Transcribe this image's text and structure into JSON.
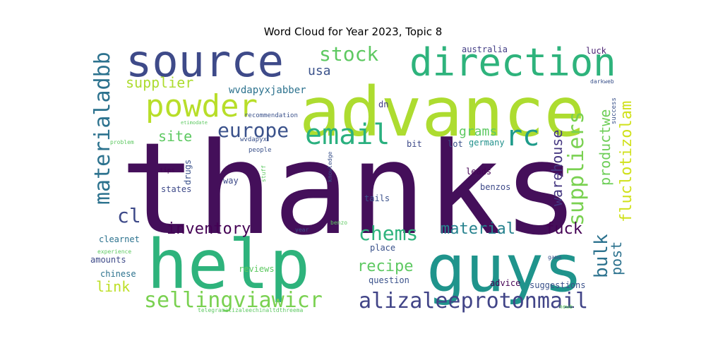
{
  "chart_data": {
    "type": "wordcloud",
    "title": "Word Cloud for Year 2023, Topic 8",
    "xlabel": "",
    "ylabel": "",
    "words": [
      {
        "text": "thanks",
        "weight": 100,
        "color": "#440f5a",
        "rotated": false
      },
      {
        "text": "advance",
        "weight": 52,
        "color": "#addc30",
        "rotated": false
      },
      {
        "text": "help",
        "weight": 48,
        "color": "#2eb37c",
        "rotated": false
      },
      {
        "text": "guys",
        "weight": 44,
        "color": "#1f948c",
        "rotated": false
      },
      {
        "text": "source",
        "weight": 34,
        "color": "#3e4a89",
        "rotated": false
      },
      {
        "text": "direction",
        "weight": 28,
        "color": "#2eb37c",
        "rotated": false
      },
      {
        "text": "powder",
        "weight": 22,
        "color": "#b8de29",
        "rotated": false
      },
      {
        "text": "email",
        "weight": 22,
        "color": "#2ab07f",
        "rotated": false
      },
      {
        "text": "rc",
        "weight": 22,
        "color": "#1e9b8a",
        "rotated": false
      },
      {
        "text": "materialadbb",
        "weight": 14,
        "color": "#2c728e",
        "rotated": true
      },
      {
        "text": "suppliers",
        "weight": 16,
        "color": "#7ad151",
        "rotated": true
      },
      {
        "text": "alizaleeprotonmail",
        "weight": 15,
        "color": "#414487",
        "rotated": false
      },
      {
        "text": "sellingviawicr",
        "weight": 15,
        "color": "#7ad151",
        "rotated": false
      },
      {
        "text": "chems",
        "weight": 14,
        "color": "#2eb37c",
        "rotated": false
      },
      {
        "text": "stock",
        "weight": 13,
        "color": "#5ec962",
        "rotated": false
      },
      {
        "text": "europe",
        "weight": 13,
        "color": "#3b528b",
        "rotated": false
      },
      {
        "text": "cl",
        "weight": 13,
        "color": "#3e4a89",
        "rotated": false
      },
      {
        "text": "bulk",
        "weight": 13,
        "color": "#2c728e",
        "rotated": true
      },
      {
        "text": "inventory",
        "weight": 11,
        "color": "#440154",
        "rotated": false
      },
      {
        "text": "recipe",
        "weight": 11,
        "color": "#5ec962",
        "rotated": false
      },
      {
        "text": "fuck",
        "weight": 10,
        "color": "#440154",
        "rotated": false
      },
      {
        "text": "material",
        "weight": 10,
        "color": "#26828e",
        "rotated": false
      },
      {
        "text": "fluclotizolam",
        "weight": 10,
        "color": "#d0e11c",
        "rotated": true
      },
      {
        "text": "productwe",
        "weight": 9,
        "color": "#6ece58",
        "rotated": true
      },
      {
        "text": "warehouse",
        "weight": 9,
        "color": "#453781",
        "rotated": true
      },
      {
        "text": "supplier",
        "weight": 9,
        "color": "#addc30",
        "rotated": false
      },
      {
        "text": "site",
        "weight": 9,
        "color": "#5ec962",
        "rotated": false
      },
      {
        "text": "link",
        "weight": 9,
        "color": "#bddf26",
        "rotated": false
      },
      {
        "text": "post",
        "weight": 9,
        "color": "#2c728e",
        "rotated": true
      },
      {
        "text": "usa",
        "weight": 8,
        "color": "#3b528b",
        "rotated": false
      },
      {
        "text": "grams",
        "weight": 8,
        "color": "#5ec962",
        "rotated": false
      },
      {
        "text": "wvdapyxjabber",
        "weight": 7,
        "color": "#2c728e",
        "rotated": false
      },
      {
        "text": "australia",
        "weight": 6,
        "color": "#433e85",
        "rotated": false
      },
      {
        "text": "luck",
        "weight": 6,
        "color": "#481f70",
        "rotated": false
      },
      {
        "text": "drugs",
        "weight": 5,
        "color": "#3b528b",
        "rotated": true
      },
      {
        "text": "germany",
        "weight": 5,
        "color": "#21918c",
        "rotated": false
      },
      {
        "text": "lot",
        "weight": 5,
        "color": "#3b528b",
        "rotated": false
      },
      {
        "text": "bit",
        "weight": 5,
        "color": "#3e4a89",
        "rotated": false
      },
      {
        "text": "dn",
        "weight": 5,
        "color": "#433e85",
        "rotated": false
      },
      {
        "text": "leads",
        "weight": 5,
        "color": "#440154",
        "rotated": false
      },
      {
        "text": "benzos",
        "weight": 5,
        "color": "#3e4a89",
        "rotated": false
      },
      {
        "text": "tails",
        "weight": 5,
        "color": "#3b528b",
        "rotated": false
      },
      {
        "text": "states",
        "weight": 5,
        "color": "#3e4a89",
        "rotated": false
      },
      {
        "text": "way",
        "weight": 5,
        "color": "#3e4a89",
        "rotated": false
      },
      {
        "text": "clearnet",
        "weight": 5,
        "color": "#2c728e",
        "rotated": false
      },
      {
        "text": "amounts",
        "weight": 5,
        "color": "#3e4a89",
        "rotated": false
      },
      {
        "text": "chinese",
        "weight": 5,
        "color": "#2c728e",
        "rotated": false
      },
      {
        "text": "reviews",
        "weight": 5,
        "color": "#5ec962",
        "rotated": false
      },
      {
        "text": "question",
        "weight": 5,
        "color": "#3b528b",
        "rotated": false
      },
      {
        "text": "advice",
        "weight": 5,
        "color": "#440154",
        "rotated": false
      },
      {
        "text": "suggestions",
        "weight": 5,
        "color": "#3b528b",
        "rotated": false
      },
      {
        "text": "place",
        "weight": 5,
        "color": "#3b528b",
        "rotated": false
      },
      {
        "text": "recommendation",
        "weight": 4,
        "color": "#3b528b",
        "rotated": false
      },
      {
        "text": "success",
        "weight": 4,
        "color": "#3b528b",
        "rotated": true
      },
      {
        "text": "darkweb",
        "weight": 3,
        "color": "#3b528b",
        "rotated": false
      },
      {
        "text": "wvdapyx",
        "weight": 4,
        "color": "#3b528b",
        "rotated": false
      },
      {
        "text": "people",
        "weight": 4,
        "color": "#3b528b",
        "rotated": false
      },
      {
        "text": "problem",
        "weight": 3,
        "color": "#5ec962",
        "rotated": false
      },
      {
        "text": "tips",
        "weight": 4,
        "color": "#440154",
        "rotated": false
      },
      {
        "text": "stuff",
        "weight": 3,
        "color": "#5ec962",
        "rotated": true
      },
      {
        "text": "knowledge",
        "weight": 3,
        "color": "#3b528b",
        "rotated": true
      },
      {
        "text": "experience",
        "weight": 3,
        "color": "#5ec962",
        "rotated": false
      },
      {
        "text": "year",
        "weight": 3,
        "color": "#3b528b",
        "rotated": false
      },
      {
        "text": "benzo",
        "weight": 3,
        "color": "#5ec962",
        "rotated": false
      },
      {
        "text": "game",
        "weight": 3,
        "color": "#3b528b",
        "rotated": false
      },
      {
        "text": "newb",
        "weight": 3,
        "color": "#5ec962",
        "rotated": false
      },
      {
        "text": "telegramalizaleechinaltdthreema",
        "weight": 3,
        "color": "#5ec962",
        "rotated": false
      },
      {
        "text": "etimodate",
        "weight": 2,
        "color": "#5ec962",
        "rotated": false
      }
    ]
  }
}
